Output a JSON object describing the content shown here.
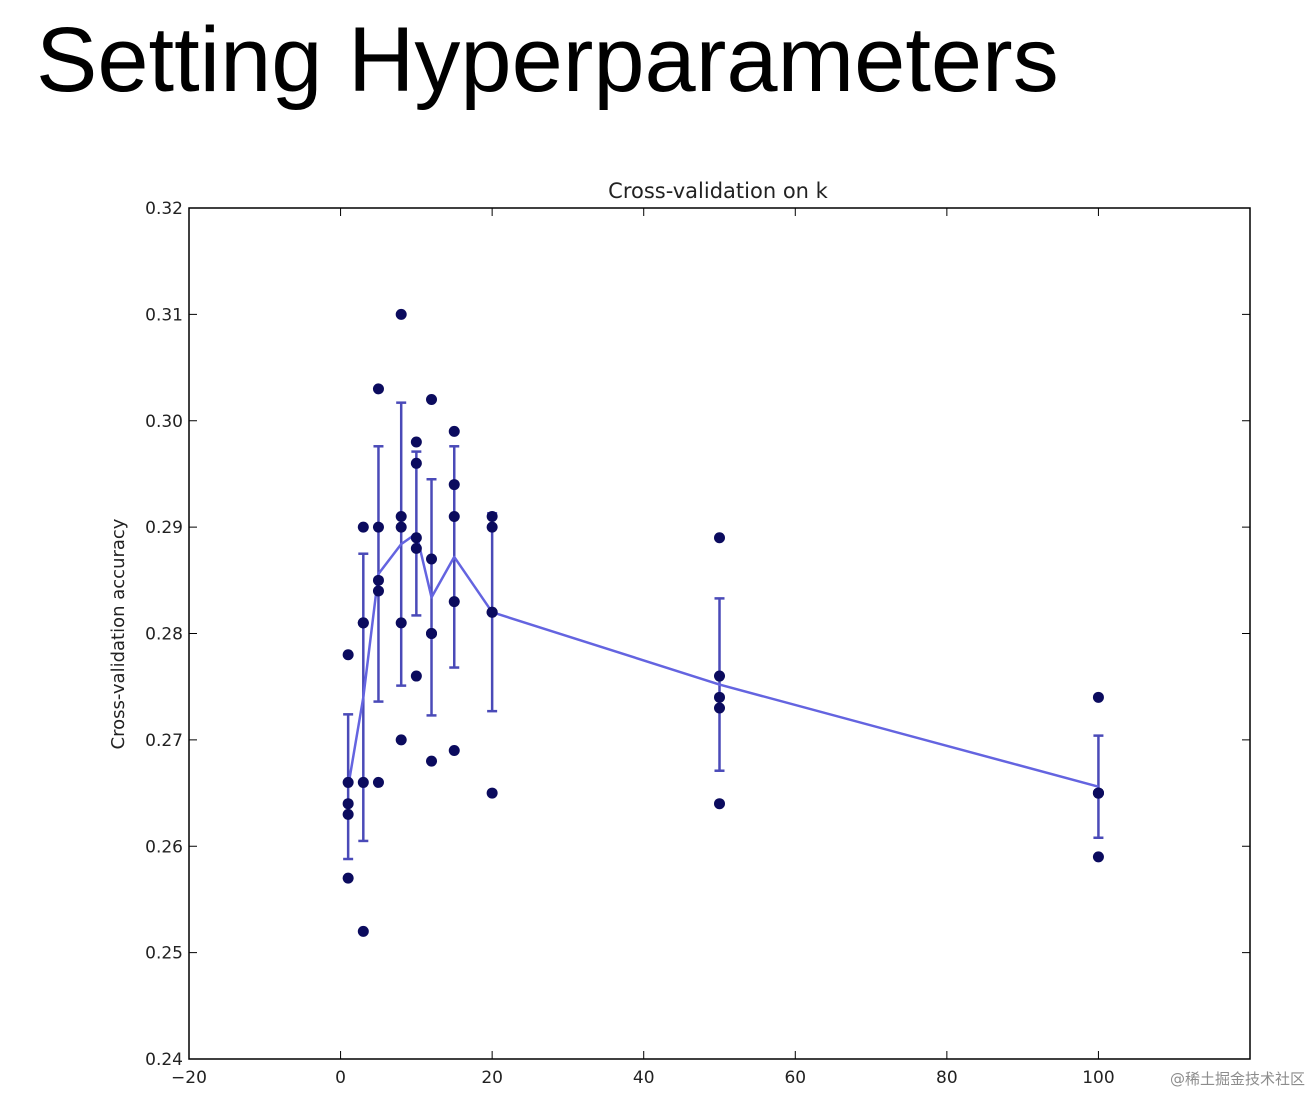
{
  "slide": {
    "title": "Setting Hyperparameters"
  },
  "watermark": {
    "text": "@稀土掘金技术社区"
  },
  "colors": {
    "points": "#0b0b5e",
    "line": "#6464e0",
    "errorbars": "#4a4ab8",
    "axes": "#000000"
  },
  "chart_data": {
    "type": "scatter",
    "title": "Cross-validation on k",
    "xlabel": "",
    "ylabel": "Cross-validation accuracy",
    "xlim": [
      -20,
      120
    ],
    "ylim": [
      0.24,
      0.32
    ],
    "xticks": [
      -20,
      0,
      20,
      40,
      60,
      80,
      100
    ],
    "xtick_labels": [
      "−20",
      "0",
      "20",
      "40",
      "60",
      "80",
      "100"
    ],
    "yticks": [
      0.24,
      0.25,
      0.26,
      0.27,
      0.28,
      0.29,
      0.3,
      0.31,
      0.32
    ],
    "ytick_labels": [
      "0.24",
      "0.25",
      "0.26",
      "0.27",
      "0.28",
      "0.29",
      "0.30",
      "0.31",
      "0.32"
    ],
    "grid": false,
    "legend": "none",
    "folds": [
      {
        "k": 1,
        "accuracies": [
          0.278,
          0.266,
          0.264,
          0.263,
          0.257
        ]
      },
      {
        "k": 3,
        "accuracies": [
          0.29,
          0.281,
          0.266,
          0.252,
          0.281
        ]
      },
      {
        "k": 5,
        "accuracies": [
          0.303,
          0.29,
          0.285,
          0.284,
          0.266
        ]
      },
      {
        "k": 8,
        "accuracies": [
          0.31,
          0.291,
          0.29,
          0.281,
          0.27
        ]
      },
      {
        "k": 10,
        "accuracies": [
          0.298,
          0.296,
          0.289,
          0.288,
          0.276
        ]
      },
      {
        "k": 12,
        "accuracies": [
          0.302,
          0.287,
          0.28,
          0.28,
          0.268
        ]
      },
      {
        "k": 15,
        "accuracies": [
          0.299,
          0.294,
          0.291,
          0.283,
          0.269
        ]
      },
      {
        "k": 20,
        "accuracies": [
          0.291,
          0.29,
          0.282,
          0.282,
          0.265
        ]
      },
      {
        "k": 50,
        "accuracies": [
          0.289,
          0.276,
          0.274,
          0.273,
          0.264
        ]
      },
      {
        "k": 100,
        "accuracies": [
          0.274,
          0.265,
          0.265,
          0.265,
          0.259
        ]
      }
    ],
    "mean_series": {
      "x": [
        1,
        3,
        5,
        8,
        10,
        12,
        15,
        20,
        50,
        100
      ],
      "y": [
        0.2656,
        0.274,
        0.2856,
        0.2884,
        0.2894,
        0.2834,
        0.2872,
        0.282,
        0.2752,
        0.2656
      ],
      "std": [
        0.0068,
        0.0135,
        0.012,
        0.0133,
        0.0077,
        0.0111,
        0.0104,
        0.0093,
        0.0081,
        0.0048
      ]
    }
  }
}
